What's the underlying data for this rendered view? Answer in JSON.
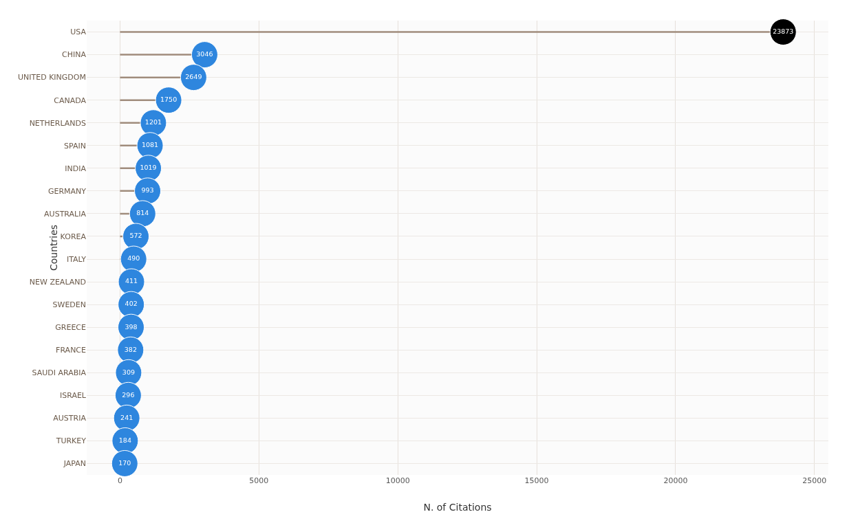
{
  "chart_data": {
    "type": "lollipop",
    "orientation": "horizontal",
    "xlabel": "N. of Citations",
    "ylabel": "Countries",
    "categories": [
      "USA",
      "CHINA",
      "UNITED KINGDOM",
      "CANADA",
      "NETHERLANDS",
      "SPAIN",
      "INDIA",
      "GERMANY",
      "AUSTRALIA",
      "KOREA",
      "ITALY",
      "NEW ZEALAND",
      "SWEDEN",
      "GREECE",
      "FRANCE",
      "SAUDI ARABIA",
      "ISRAEL",
      "AUSTRIA",
      "TURKEY",
      "JAPAN"
    ],
    "values": [
      23873,
      3046,
      2649,
      1750,
      1201,
      1081,
      1019,
      993,
      814,
      572,
      490,
      411,
      402,
      398,
      382,
      309,
      296,
      241,
      184,
      170
    ],
    "colors": [
      "#000000",
      "#2e86de",
      "#2e86de",
      "#2e86de",
      "#2e86de",
      "#2e86de",
      "#2e86de",
      "#2e86de",
      "#2e86de",
      "#2e86de",
      "#2e86de",
      "#2e86de",
      "#2e86de",
      "#2e86de",
      "#2e86de",
      "#2e86de",
      "#2e86de",
      "#2e86de",
      "#2e86de",
      "#2e86de"
    ],
    "color": "#a08c7c",
    "data_labels": true,
    "marker": "circle",
    "grid": true,
    "xlim": [
      -1200,
      25500
    ],
    "xticks": [
      0,
      5000,
      10000,
      15000,
      20000,
      25000
    ]
  }
}
